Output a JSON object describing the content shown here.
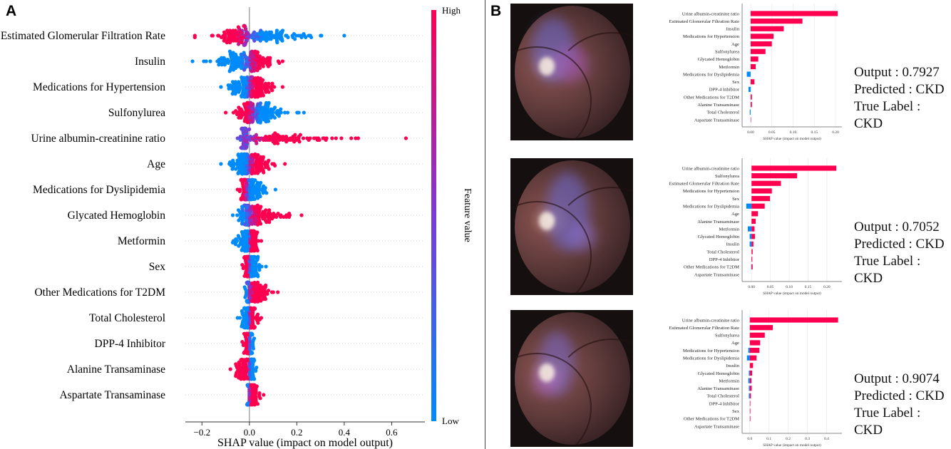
{
  "panel_labels": {
    "a": "A",
    "b": "B"
  },
  "colors": {
    "high": "#ff0051",
    "low": "#008bfb",
    "mid": "#7c3ad8"
  },
  "chart_data": [
    {
      "type": "scatter",
      "subtype": "shap-beeswarm",
      "xlabel": "SHAP value (impact on model output)",
      "xlim": [
        -0.27,
        0.74
      ],
      "xticks": [
        "−0.2",
        "0.0",
        "0.2",
        "0.4",
        "0.6"
      ],
      "xtick_values": [
        -0.2,
        0.0,
        0.2,
        0.4,
        0.6
      ],
      "colorbar": {
        "label": "Feature value",
        "high": "High",
        "low": "Low"
      },
      "features": [
        {
          "name": "Estimated Glomerular Filtration Rate",
          "min": -0.23,
          "max": 0.4,
          "center": 0.0,
          "direction": -1
        },
        {
          "name": "Insulin",
          "min": -0.24,
          "max": 0.14,
          "center": 0.0,
          "direction": 1
        },
        {
          "name": "Medications for Hypertension",
          "min": -0.12,
          "max": 0.14,
          "center": 0.0,
          "direction": 1
        },
        {
          "name": "Sulfonylurea",
          "min": -0.1,
          "max": 0.23,
          "center": 0.02,
          "direction": -1
        },
        {
          "name": "Urine albumin-creatinine ratio",
          "min": -0.05,
          "max": 0.66,
          "center": -0.01,
          "direction": 1
        },
        {
          "name": "Age",
          "min": -0.12,
          "max": 0.15,
          "center": 0.0,
          "direction": 1
        },
        {
          "name": "Medications for Dyslipidemia",
          "min": -0.05,
          "max": 0.11,
          "center": -0.01,
          "direction": -1
        },
        {
          "name": "Glycated Hemoglobin",
          "min": -0.07,
          "max": 0.22,
          "center": 0.0,
          "direction": 1
        },
        {
          "name": "Metformin",
          "min": -0.07,
          "max": 0.05,
          "center": 0.0,
          "direction": 1
        },
        {
          "name": "Sex",
          "min": -0.03,
          "max": 0.07,
          "center": 0.0,
          "direction": -1
        },
        {
          "name": "Other Medications for T2DM",
          "min": -0.02,
          "max": 0.12,
          "center": 0.0,
          "direction": 1
        },
        {
          "name": "Total Cholesterol",
          "min": -0.05,
          "max": 0.05,
          "center": 0.0,
          "direction": 1
        },
        {
          "name": "DPP-4 Inhibitor",
          "min": -0.03,
          "max": 0.02,
          "center": 0.0,
          "direction": -1
        },
        {
          "name": "Alanine Transaminase",
          "min": -0.08,
          "max": 0.03,
          "center": 0.0,
          "direction": -1
        },
        {
          "name": "Aspartate Transaminase",
          "min": -0.01,
          "max": 0.06,
          "center": 0.0,
          "direction": 1
        }
      ]
    },
    {
      "type": "bar",
      "xlabel": "SHAP value (impact on model output)",
      "xlim": [
        -0.02,
        0.215
      ],
      "xticks": [
        "0.00",
        "0.05",
        "0.10",
        "0.15",
        "0.20"
      ],
      "xtick_values": [
        0,
        0.05,
        0.1,
        0.15,
        0.2
      ],
      "output": "Output : 0.7927",
      "predicted": "Predicted : CKD",
      "true_label": "True Label : CKD",
      "bars": [
        {
          "feature": "Urine albumin-creatinine ratio",
          "pos": 0.205,
          "neg": 0
        },
        {
          "feature": "Estimated Glomerular Filtration Rate",
          "pos": 0.122,
          "neg": 0
        },
        {
          "feature": "Insulin",
          "pos": 0.078,
          "neg": 0
        },
        {
          "feature": "Medications for Hypertension",
          "pos": 0.054,
          "neg": 0
        },
        {
          "feature": "Age",
          "pos": 0.05,
          "neg": 0
        },
        {
          "feature": "Sulfonylurea",
          "pos": 0.035,
          "neg": 0
        },
        {
          "feature": "Glycated Hemoglobin",
          "pos": 0.018,
          "neg": 0
        },
        {
          "feature": "Metformin",
          "pos": 0.012,
          "neg": 0
        },
        {
          "feature": "Medications for Dyslipidemia",
          "pos": 0,
          "neg": -0.009
        },
        {
          "feature": "Sex",
          "pos": 0.009,
          "neg": 0
        },
        {
          "feature": "DPP-4 Inhibitor",
          "pos": 0,
          "neg": -0.005
        },
        {
          "feature": "Other Medications for T2DM",
          "pos": 0.003,
          "neg": 0
        },
        {
          "feature": "Alanine Transaminase",
          "pos": 0.003,
          "neg": 0
        },
        {
          "feature": "Total Cholesterol",
          "pos": 0,
          "neg": -0.002
        },
        {
          "feature": "Aspartate Transaminase",
          "pos": 0.0005,
          "neg": 0
        }
      ]
    },
    {
      "type": "bar",
      "xlabel": "SHAP value (impact on model output)",
      "xlim": [
        -0.025,
        0.24
      ],
      "xticks": [
        "0.00",
        "0.05",
        "0.10",
        "0.15",
        "0.20"
      ],
      "xtick_values": [
        0,
        0.05,
        0.1,
        0.15,
        0.2
      ],
      "output": "Output : 0.7052",
      "predicted": "Predicted : CKD",
      "true_label": "True Label : CKD",
      "bars": [
        {
          "feature": "Urine albumin-creatinine ratio",
          "pos": 0.225,
          "neg": 0
        },
        {
          "feature": "Sulfonylurea",
          "pos": 0.121,
          "neg": 0
        },
        {
          "feature": "Estimated Glomerular Filtration Rate",
          "pos": 0.078,
          "neg": 0
        },
        {
          "feature": "Medications for Hypertension",
          "pos": 0.054,
          "neg": 0
        },
        {
          "feature": "Sex",
          "pos": 0.049,
          "neg": 0
        },
        {
          "feature": "Medications for Dyslipidemia",
          "pos": 0.035,
          "neg": -0.014
        },
        {
          "feature": "Age",
          "pos": 0.017,
          "neg": 0
        },
        {
          "feature": "Alanine Transaminase",
          "pos": 0.011,
          "neg": 0
        },
        {
          "feature": "Metformin",
          "pos": 0.008,
          "neg": -0.01
        },
        {
          "feature": "Glycated Hemoglobin",
          "pos": 0.009,
          "neg": -0.005
        },
        {
          "feature": "Insulin",
          "pos": 0.005,
          "neg": -0.005
        },
        {
          "feature": "Total Cholesterol",
          "pos": 0.003,
          "neg": 0
        },
        {
          "feature": "DPP-4 Inhibitor",
          "pos": 0.002,
          "neg": 0
        },
        {
          "feature": "Other Medications for T2DM",
          "pos": 0.003,
          "neg": -0.001
        },
        {
          "feature": "Aspartate Transaminase",
          "pos": 0,
          "neg": 0
        }
      ]
    },
    {
      "type": "bar",
      "xlabel": "SHAP value (impact on model output)",
      "xlim": [
        -0.04,
        0.48
      ],
      "xticks": [
        "0.0",
        "0.1",
        "0.2",
        "0.3",
        "0.4"
      ],
      "xtick_values": [
        0,
        0.1,
        0.2,
        0.3,
        0.4
      ],
      "output": "Output : 0.9074",
      "predicted": "Predicted : CKD",
      "true_label": "True Label : CKD",
      "bars": [
        {
          "feature": "Urine albumin-creatinine ratio",
          "pos": 0.46,
          "neg": 0
        },
        {
          "feature": "Estimated Glomerular Filtration Rate",
          "pos": 0.12,
          "neg": 0
        },
        {
          "feature": "Sulfonylurea",
          "pos": 0.078,
          "neg": 0
        },
        {
          "feature": "Age",
          "pos": 0.054,
          "neg": 0
        },
        {
          "feature": "Medications for Hypertension",
          "pos": 0.05,
          "neg": -0.008
        },
        {
          "feature": "Medications for Dyslipidemia",
          "pos": 0.035,
          "neg": -0.015
        },
        {
          "feature": "Insulin",
          "pos": 0.017,
          "neg": 0
        },
        {
          "feature": "Glycated Hemoglobin",
          "pos": 0.012,
          "neg": -0.005
        },
        {
          "feature": "Metformin",
          "pos": 0.009,
          "neg": -0.008
        },
        {
          "feature": "Alanine Transaminase",
          "pos": 0.01,
          "neg": -0.005
        },
        {
          "feature": "Total Cholesterol",
          "pos": 0.006,
          "neg": -0.005
        },
        {
          "feature": "DPP-4 Inhibitor",
          "pos": 0.003,
          "neg": 0
        },
        {
          "feature": "Sex",
          "pos": 0.003,
          "neg": 0
        },
        {
          "feature": "Other Medications for T2DM",
          "pos": 0.003,
          "neg": 0
        },
        {
          "feature": "Aspartate Transaminase",
          "pos": 0,
          "neg": 0
        }
      ]
    }
  ]
}
